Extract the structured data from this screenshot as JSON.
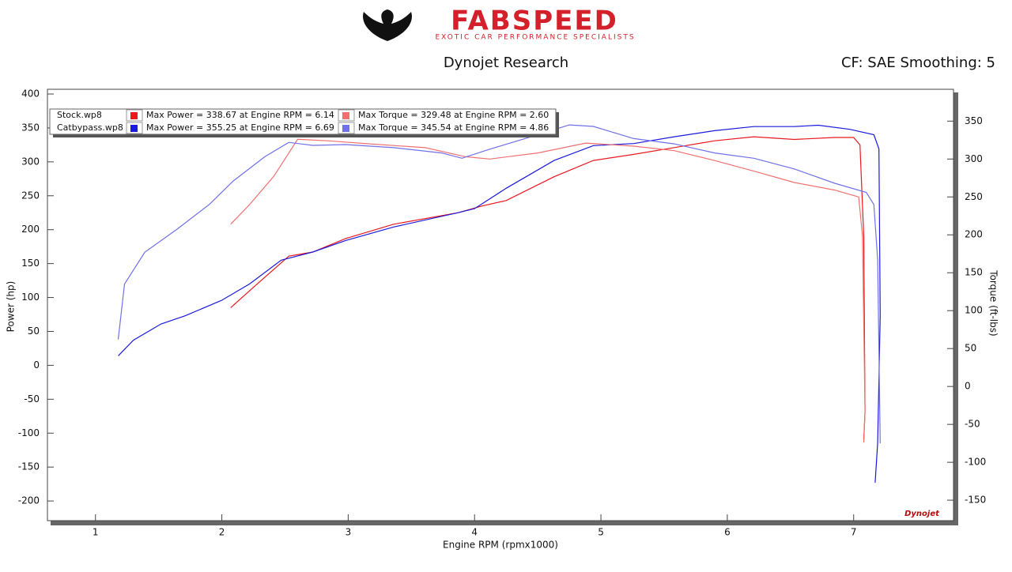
{
  "header": {
    "logo": "FABSPEED",
    "tagline": "EXOTIC CAR PERFORMANCE SPECIALISTS",
    "settings": "CF: SAE Smoothing: 5",
    "badge": "Dynojet"
  },
  "chart_data": {
    "type": "line",
    "title": "Dynojet Research",
    "x_label": "Engine RPM (rpmx1000)",
    "y_label": "Power (hp)",
    "y2_label": "Torque (ft-lbs)",
    "xlim": [
      0.62,
      7.79
    ],
    "xticks": [
      1,
      2,
      3,
      4,
      5,
      6,
      7
    ],
    "ylim": [
      -229,
      407
    ],
    "yticks": [
      -200,
      -150,
      -100,
      -50,
      0,
      50,
      100,
      150,
      200,
      250,
      300,
      350,
      400
    ],
    "y2lim": [
      -177,
      392
    ],
    "y2ticks": [
      -150,
      -100,
      -50,
      0,
      50,
      100,
      150,
      200,
      250,
      300,
      350
    ],
    "legend_files": [
      "Stock.wp8",
      "Catbypass.wp8"
    ],
    "series": [
      {
        "name": "Max Power = 338.67 at Engine RPM = 6.14",
        "color": "#e8191f",
        "axis": "y",
        "x": [
          2.07,
          2.28,
          2.53,
          2.72,
          2.98,
          3.36,
          3.87,
          4.06,
          4.25,
          4.63,
          4.94,
          5.26,
          5.58,
          5.9,
          6.21,
          6.53,
          6.85,
          7.0,
          7.05,
          7.08,
          7.09,
          7.08
        ],
        "values": [
          85,
          120,
          161,
          167,
          187,
          208,
          225,
          235,
          243,
          278,
          302,
          311,
          321,
          331,
          337,
          333,
          336,
          336,
          325,
          190,
          -68,
          -109
        ]
      },
      {
        "name": "Max Power = 355.25 at Engine RPM = 6.69",
        "color": "#1a1adb",
        "axis": "y",
        "x": [
          1.18,
          1.3,
          1.52,
          1.71,
          2.0,
          2.22,
          2.47,
          2.72,
          2.98,
          3.36,
          3.87,
          4.0,
          4.25,
          4.63,
          4.94,
          5.26,
          5.58,
          5.9,
          6.21,
          6.53,
          6.72,
          6.97,
          7.16,
          7.2,
          7.21,
          7.19,
          7.17
        ],
        "values": [
          14,
          37,
          61,
          73,
          96,
          120,
          155,
          167,
          184,
          204,
          225,
          231,
          261,
          302,
          324,
          327,
          337,
          346,
          352,
          352,
          354,
          348,
          340,
          319,
          73,
          -114,
          -173
        ]
      },
      {
        "name": "Max Torque = 329.48 at Engine RPM = 2.60",
        "color": "#f07070",
        "axis": "y2",
        "x": [
          2.07,
          2.22,
          2.41,
          2.6,
          2.85,
          3.17,
          3.61,
          3.93,
          4.12,
          4.5,
          4.88,
          5.26,
          5.58,
          5.9,
          6.21,
          6.53,
          6.85,
          7.04,
          7.07,
          7.09,
          7.08
        ],
        "values": [
          214,
          240,
          277,
          326,
          324,
          320,
          315,
          303,
          300,
          308,
          321,
          317,
          311,
          298,
          284,
          269,
          259,
          250,
          198,
          -33,
          -74
        ]
      },
      {
        "name": "Max Torque = 345.54 at Engine RPM = 4.86",
        "color": "#7070e8",
        "axis": "y2",
        "x": [
          1.18,
          1.23,
          1.39,
          1.65,
          1.9,
          2.09,
          2.34,
          2.53,
          2.72,
          2.98,
          3.36,
          3.74,
          3.9,
          4.12,
          4.5,
          4.75,
          4.94,
          5.26,
          5.58,
          5.9,
          6.21,
          6.53,
          6.85,
          7.1,
          7.16,
          7.19,
          7.21
        ],
        "values": [
          62,
          135,
          177,
          208,
          240,
          271,
          303,
          322,
          318,
          319,
          315,
          308,
          301,
          313,
          332,
          345,
          343,
          327,
          320,
          308,
          301,
          287,
          268,
          256,
          240,
          167,
          -75
        ]
      }
    ]
  }
}
